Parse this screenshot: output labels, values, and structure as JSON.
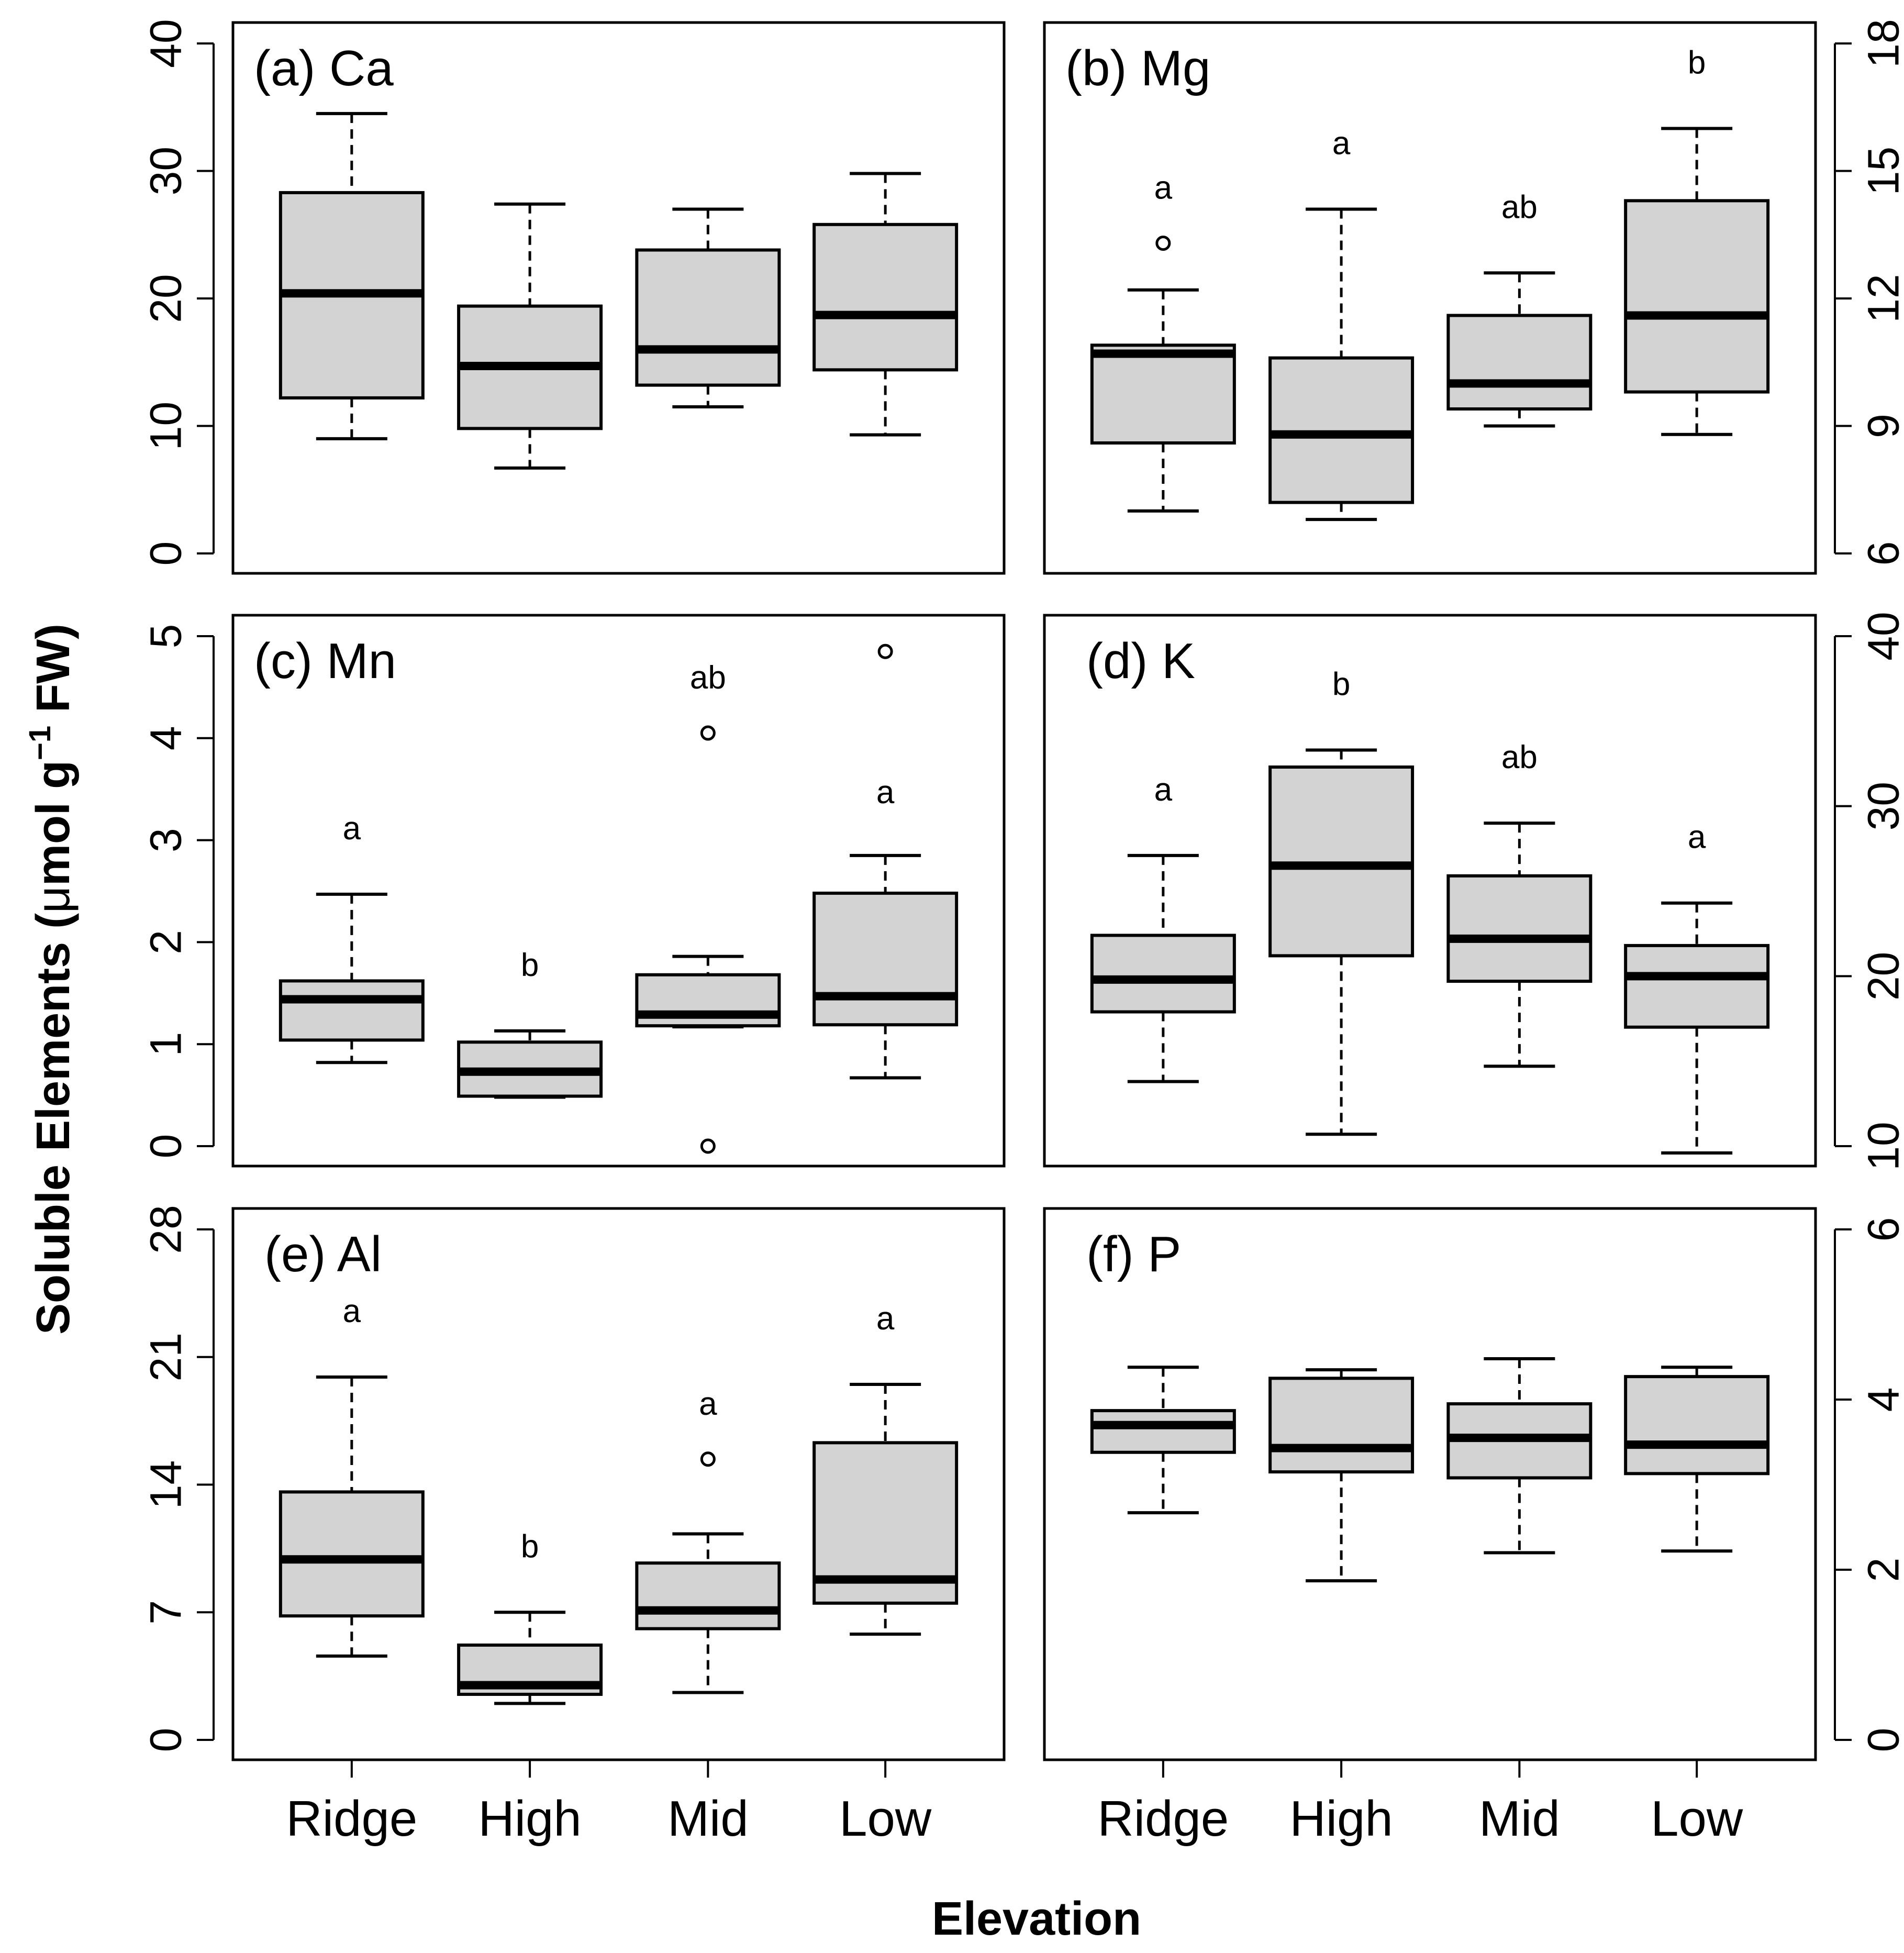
{
  "y_axis_title": {
    "main": "Soluble Elements (",
    "mu": "μ",
    "unit": "mol g",
    "sup": "−1",
    "tail": " FW)"
  },
  "x_axis_title": "Elevation",
  "chart_data": [
    {
      "type": "box",
      "title": "(a) Ca",
      "categories": [
        "Ridge",
        "High",
        "Mid",
        "Low"
      ],
      "ylim": [
        0,
        40
      ],
      "yticks": [
        "0",
        "10",
        "20",
        "30",
        "40"
      ],
      "boxes": [
        {
          "category": "Ridge",
          "min": 9,
          "q1": 12.2,
          "median": 20.4,
          "q3": 28.3,
          "max": 34.5,
          "outliers": [],
          "letter": ""
        },
        {
          "category": "High",
          "min": 6.7,
          "q1": 9.8,
          "median": 14.7,
          "q3": 19.4,
          "max": 27.4,
          "outliers": [],
          "letter": ""
        },
        {
          "category": "Mid",
          "min": 11.5,
          "q1": 13.2,
          "median": 16.0,
          "q3": 23.8,
          "max": 27.0,
          "outliers": [],
          "letter": ""
        },
        {
          "category": "Low",
          "min": 9.3,
          "q1": 14.4,
          "median": 18.7,
          "q3": 25.8,
          "max": 29.8,
          "outliers": [],
          "letter": ""
        }
      ]
    },
    {
      "type": "box",
      "title": "(b) Mg",
      "categories": [
        "Ridge",
        "High",
        "Mid",
        "Low"
      ],
      "ylim": [
        6,
        18
      ],
      "yticks": [
        "6",
        "9",
        "12",
        "15",
        "18"
      ],
      "boxes": [
        {
          "category": "Ridge",
          "min": 7.0,
          "q1": 8.6,
          "median": 10.7,
          "q3": 10.9,
          "max": 12.2,
          "outliers": [
            13.3
          ],
          "letter": "a"
        },
        {
          "category": "High",
          "min": 6.8,
          "q1": 7.2,
          "median": 8.8,
          "q3": 10.6,
          "max": 14.1,
          "outliers": [],
          "letter": "a"
        },
        {
          "category": "Mid",
          "min": 9.0,
          "q1": 9.4,
          "median": 10.0,
          "q3": 11.6,
          "max": 12.6,
          "outliers": [],
          "letter": "ab"
        },
        {
          "category": "Low",
          "min": 8.8,
          "q1": 9.8,
          "median": 11.6,
          "q3": 14.3,
          "max": 16.0,
          "outliers": [],
          "letter": "b"
        }
      ]
    },
    {
      "type": "box",
      "title": "(c) Mn",
      "categories": [
        "Ridge",
        "High",
        "Mid",
        "Low"
      ],
      "ylim": [
        0,
        5
      ],
      "yticks": [
        "0",
        "1",
        "2",
        "3",
        "4",
        "5"
      ],
      "boxes": [
        {
          "category": "Ridge",
          "min": 0.82,
          "q1": 1.04,
          "median": 1.44,
          "q3": 1.62,
          "max": 2.47,
          "outliers": [],
          "letter": "a"
        },
        {
          "category": "High",
          "min": 0.48,
          "q1": 0.49,
          "median": 0.73,
          "q3": 1.02,
          "max": 1.13,
          "outliers": [],
          "letter": "b"
        },
        {
          "category": "Mid",
          "min": 1.17,
          "q1": 1.18,
          "median": 1.29,
          "q3": 1.68,
          "max": 1.86,
          "outliers": [
            4.05,
            0.0
          ],
          "letter": "ab"
        },
        {
          "category": "Low",
          "min": 0.67,
          "q1": 1.19,
          "median": 1.47,
          "q3": 2.48,
          "max": 2.85,
          "outliers": [
            4.85
          ],
          "letter": "a"
        }
      ]
    },
    {
      "type": "box",
      "title": "(d) K",
      "categories": [
        "Ridge",
        "High",
        "Mid",
        "Low"
      ],
      "ylim": [
        10,
        40
      ],
      "yticks": [
        "10",
        "20",
        "30",
        "40"
      ],
      "boxes": [
        {
          "category": "Ridge",
          "min": 13.8,
          "q1": 17.9,
          "median": 19.8,
          "q3": 22.4,
          "max": 27.1,
          "outliers": [],
          "letter": "a"
        },
        {
          "category": "High",
          "min": 10.7,
          "q1": 21.2,
          "median": 26.5,
          "q3": 32.3,
          "max": 33.3,
          "outliers": [],
          "letter": "b"
        },
        {
          "category": "Mid",
          "min": 14.7,
          "q1": 19.7,
          "median": 22.2,
          "q3": 25.9,
          "max": 29.0,
          "outliers": [],
          "letter": "ab"
        },
        {
          "category": "Low",
          "min": 9.6,
          "q1": 17.0,
          "median": 20.0,
          "q3": 21.8,
          "max": 24.3,
          "outliers": [],
          "letter": "a"
        }
      ]
    },
    {
      "type": "box",
      "title": "(e) Al",
      "categories": [
        "Ridge",
        "High",
        "Mid",
        "Low"
      ],
      "ylim": [
        0,
        28
      ],
      "yticks": [
        "0",
        "7",
        "14",
        "21",
        "28"
      ],
      "boxes": [
        {
          "category": "Ridge",
          "min": 4.6,
          "q1": 6.8,
          "median": 9.9,
          "q3": 13.6,
          "max": 19.9,
          "outliers": [],
          "letter": "a"
        },
        {
          "category": "High",
          "min": 2.0,
          "q1": 2.5,
          "median": 3.0,
          "q3": 5.2,
          "max": 7.0,
          "outliers": [],
          "letter": "b"
        },
        {
          "category": "Mid",
          "min": 2.6,
          "q1": 6.1,
          "median": 7.1,
          "q3": 9.7,
          "max": 11.3,
          "outliers": [
            15.4
          ],
          "letter": "a"
        },
        {
          "category": "Low",
          "min": 5.8,
          "q1": 7.5,
          "median": 8.8,
          "q3": 16.3,
          "max": 19.5,
          "outliers": [],
          "letter": "a"
        }
      ]
    },
    {
      "type": "box",
      "title": "(f) P",
      "categories": [
        "Ridge",
        "High",
        "Mid",
        "Low"
      ],
      "ylim": [
        0,
        6
      ],
      "yticks": [
        "0",
        "2",
        "4",
        "6"
      ],
      "boxes": [
        {
          "category": "Ridge",
          "min": 2.67,
          "q1": 3.38,
          "median": 3.7,
          "q3": 3.87,
          "max": 4.38,
          "outliers": [],
          "letter": ""
        },
        {
          "category": "High",
          "min": 1.87,
          "q1": 3.15,
          "median": 3.43,
          "q3": 4.25,
          "max": 4.35,
          "outliers": [],
          "letter": ""
        },
        {
          "category": "Mid",
          "min": 2.2,
          "q1": 3.08,
          "median": 3.55,
          "q3": 3.95,
          "max": 4.48,
          "outliers": [],
          "letter": ""
        },
        {
          "category": "Low",
          "min": 2.22,
          "q1": 3.13,
          "median": 3.47,
          "q3": 4.27,
          "max": 4.38,
          "outliers": [],
          "letter": ""
        }
      ]
    }
  ]
}
